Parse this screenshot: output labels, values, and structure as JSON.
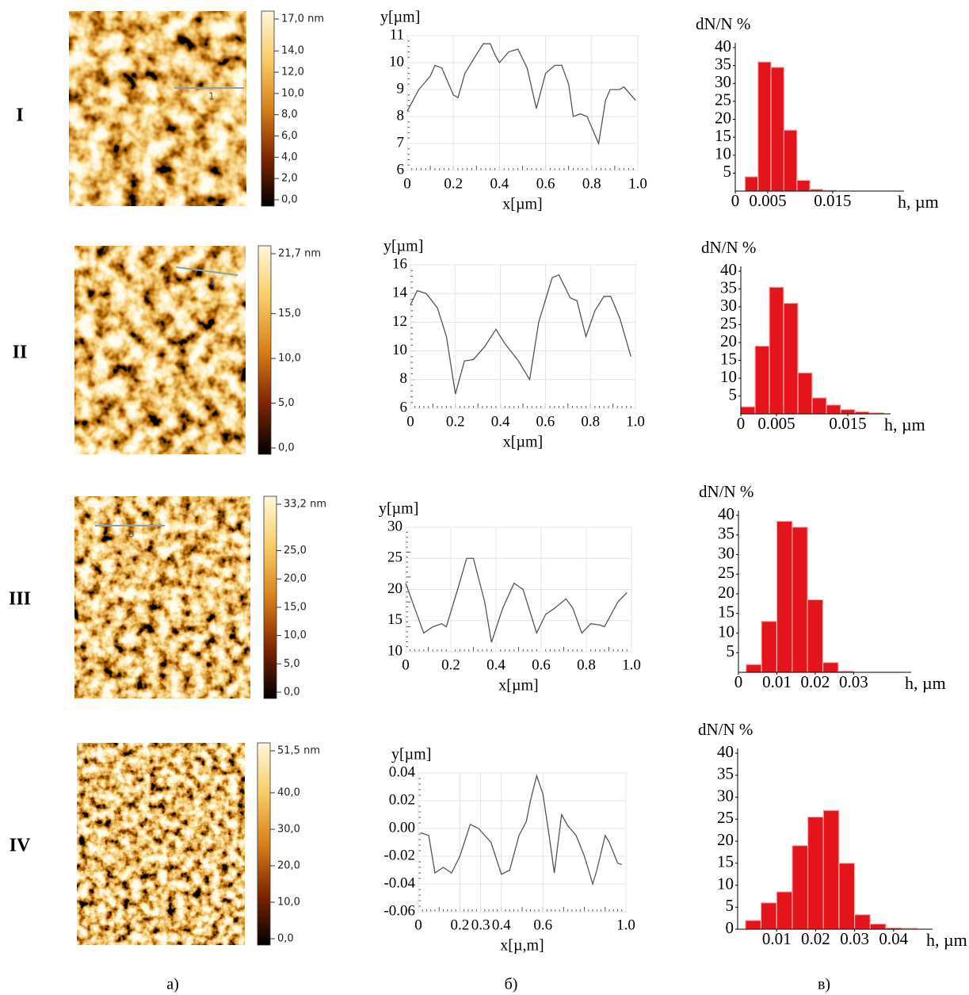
{
  "panel_labels": [
    "а)",
    "б)",
    "в)"
  ],
  "rows": [
    {
      "label": "I",
      "marker": "1",
      "colorbar": {
        "lim": [
          0,
          17
        ],
        "ticks": [
          {
            "value": 0,
            "label": "0,0"
          },
          {
            "value": 2,
            "label": "2,0"
          },
          {
            "value": 4,
            "label": "4,0"
          },
          {
            "value": 6,
            "label": "6,0"
          },
          {
            "value": 8,
            "label": "8,0"
          },
          {
            "value": 10,
            "label": "10,0"
          },
          {
            "value": 12,
            "label": "12,0"
          },
          {
            "value": 14,
            "label": "14,0"
          },
          {
            "value": 17,
            "label": "17,0 nm"
          }
        ]
      }
    },
    {
      "label": "II",
      "marker": "1",
      "colorbar": {
        "lim": [
          0,
          21.7
        ],
        "ticks": [
          {
            "value": 0,
            "label": "0,0"
          },
          {
            "value": 5,
            "label": "5,0"
          },
          {
            "value": 10,
            "label": "10,0"
          },
          {
            "value": 15,
            "label": "15,0"
          },
          {
            "value": 21.7,
            "label": "21,7 nm"
          }
        ]
      }
    },
    {
      "label": "III",
      "marker": "3",
      "colorbar": {
        "lim": [
          0,
          33.2
        ],
        "ticks": [
          {
            "value": 0,
            "label": "0,0"
          },
          {
            "value": 5,
            "label": "5,0"
          },
          {
            "value": 10,
            "label": "10,0"
          },
          {
            "value": 15,
            "label": "15,0"
          },
          {
            "value": 20,
            "label": "20,0"
          },
          {
            "value": 25,
            "label": "25,0"
          },
          {
            "value": 33.2,
            "label": "33,2 nm"
          }
        ]
      }
    },
    {
      "label": "IV",
      "colorbar": {
        "lim": [
          0,
          51.5
        ],
        "ticks": [
          {
            "value": 0,
            "label": "0,0"
          },
          {
            "value": 10,
            "label": "10,0"
          },
          {
            "value": 20,
            "label": "20,0"
          },
          {
            "value": 30,
            "label": "30,0"
          },
          {
            "value": 40,
            "label": "40,0"
          },
          {
            "value": 51.5,
            "label": "51,5 nm"
          }
        ]
      }
    }
  ],
  "chart_data": [
    {
      "type": "line",
      "y_label": "y[µm]",
      "x_label": "x[µm]",
      "color": "#555555",
      "x": [
        0,
        0.05,
        0.1,
        0.12,
        0.15,
        0.2,
        0.22,
        0.25,
        0.3,
        0.33,
        0.36,
        0.38,
        0.4,
        0.44,
        0.48,
        0.52,
        0.56,
        0.6,
        0.64,
        0.67,
        0.7,
        0.72,
        0.75,
        0.78,
        0.8,
        0.83,
        0.86,
        0.88,
        0.92,
        0.94,
        0.96,
        0.99
      ],
      "values": [
        8.2,
        9,
        9.5,
        9.9,
        9.8,
        8.8,
        8.7,
        9.6,
        10.3,
        10.7,
        10.7,
        10.3,
        10,
        10.4,
        10.5,
        9.8,
        8.3,
        9.6,
        9.9,
        9.9,
        9.2,
        8,
        8.1,
        8,
        7.6,
        7,
        8.6,
        9,
        9,
        9.1,
        8.9,
        8.6
      ],
      "xlim": [
        0,
        1
      ],
      "xticks": [
        0,
        0.2,
        0.4,
        0.6,
        0.8,
        {
          "value": 1,
          "label": "1.0"
        }
      ],
      "ylim": [
        6,
        11
      ],
      "yticks": [
        6,
        7,
        8,
        9,
        10,
        11
      ],
      "grid": true
    },
    {
      "type": "histogram",
      "y_label": "dN/N %",
      "x_label": "h, µm",
      "color": "#e3141b",
      "bins": [
        0.0015,
        0.0035,
        0.0055,
        0.0075,
        0.0095,
        0.0115,
        0.0135,
        0.0155
      ],
      "values": [
        4,
        36,
        34.5,
        17,
        3,
        0.5,
        0.2
      ],
      "xlim": [
        0,
        0.026
      ],
      "xticks": [
        0,
        0.005,
        0.015
      ],
      "ylim": [
        0,
        40
      ],
      "yticks": [
        5,
        10,
        15,
        20,
        25,
        30,
        35,
        40
      ]
    },
    {
      "type": "line",
      "y_label": "y[µm]",
      "x_label": "x[µm]",
      "color": "#555555",
      "x": [
        0,
        0.03,
        0.07,
        0.12,
        0.16,
        0.2,
        0.24,
        0.28,
        0.33,
        0.38,
        0.42,
        0.48,
        0.53,
        0.57,
        0.63,
        0.66,
        0.71,
        0.74,
        0.78,
        0.82,
        0.86,
        0.89,
        0.93,
        0.98
      ],
      "values": [
        13.2,
        14.2,
        14,
        13,
        11,
        7,
        9.3,
        9.4,
        10.3,
        11.5,
        10.5,
        9.3,
        8,
        12,
        15.1,
        15.3,
        13.7,
        13.5,
        11,
        12.8,
        13.8,
        13.8,
        12.3,
        9.6
      ],
      "xlim": [
        0,
        1
      ],
      "xticks": [
        0,
        0.2,
        0.4,
        0.6,
        0.8,
        {
          "value": 1,
          "label": "1.0"
        }
      ],
      "ylim": [
        6,
        16
      ],
      "yticks": [
        6,
        8,
        10,
        12,
        14,
        16
      ],
      "grid": true
    },
    {
      "type": "histogram",
      "y_label": "dN/N %",
      "x_label": "h, µm",
      "color": "#e3141b",
      "bins": [
        0,
        0.002,
        0.004,
        0.006,
        0.008,
        0.01,
        0.012,
        0.014,
        0.016,
        0.018,
        0.02
      ],
      "values": [
        2,
        19,
        35.5,
        31,
        11.5,
        4.5,
        2.5,
        1.2,
        0.6,
        0.3
      ],
      "xlim": [
        0,
        0.021
      ],
      "xticks": [
        0,
        0.005,
        0.015
      ],
      "ylim": [
        0,
        40
      ],
      "yticks": [
        5,
        10,
        15,
        20,
        25,
        30,
        35,
        40
      ]
    },
    {
      "type": "line",
      "y_label": "y[µm]",
      "x_label": "x[µm]",
      "color": "#555555",
      "x": [
        0,
        0.04,
        0.08,
        0.12,
        0.16,
        0.18,
        0.23,
        0.27,
        0.3,
        0.35,
        0.38,
        0.43,
        0.48,
        0.52,
        0.58,
        0.62,
        0.66,
        0.71,
        0.74,
        0.78,
        0.82,
        0.86,
        0.88,
        0.94,
        0.98
      ],
      "values": [
        21,
        17,
        13,
        14,
        14.5,
        14,
        20,
        25,
        25,
        18,
        11.5,
        17,
        21,
        20,
        13,
        16,
        17,
        18.5,
        17,
        13,
        14.5,
        14.3,
        14,
        18,
        19.5
      ],
      "xlim": [
        0,
        1
      ],
      "xticks": [
        0,
        0.2,
        0.4,
        0.6,
        0.8,
        {
          "value": 1,
          "label": "1.0"
        }
      ],
      "ylim": [
        10,
        30
      ],
      "yticks": [
        10,
        15,
        20,
        25,
        30
      ],
      "grid": true
    },
    {
      "type": "histogram",
      "y_label": "dN/N %",
      "x_label": "h, µm",
      "color": "#e3141b",
      "bins": [
        0.002,
        0.006,
        0.01,
        0.014,
        0.018,
        0.022,
        0.026,
        0.03
      ],
      "values": [
        2,
        13,
        38.5,
        37,
        18.5,
        2.5,
        0.3
      ],
      "xlim": [
        0,
        0.045
      ],
      "xticks": [
        0,
        0.01,
        0.02,
        0.03
      ],
      "ylim": [
        0,
        40
      ],
      "yticks": [
        5,
        10,
        15,
        20,
        25,
        30,
        35,
        40
      ]
    },
    {
      "type": "line",
      "y_label": "y[µm]",
      "x_label": "x[µ,m]",
      "color": "#555555",
      "x": [
        0.01,
        0.05,
        0.08,
        0.12,
        0.16,
        0.2,
        0.25,
        0.29,
        0.35,
        0.4,
        0.44,
        0.485,
        0.52,
        0.54,
        0.57,
        0.6,
        0.63,
        0.655,
        0.69,
        0.72,
        0.76,
        0.8,
        0.84,
        0.86,
        0.9,
        0.92,
        0.96,
        0.98
      ],
      "values": [
        -0.003,
        -0.005,
        -0.032,
        -0.028,
        -0.032,
        -0.02,
        0.003,
        0,
        -0.01,
        -0.033,
        -0.03,
        -0.005,
        0.005,
        0.02,
        0.038,
        0.025,
        -0.005,
        -0.032,
        0.01,
        0.002,
        -0.005,
        -0.02,
        -0.04,
        -0.03,
        -0.005,
        -0.01,
        -0.025,
        -0.026
      ],
      "xlim": [
        0,
        1
      ],
      "xticks": [
        0,
        0.2,
        0.3,
        0.4,
        0.6,
        {
          "value": 1,
          "label": "1.0"
        }
      ],
      "ylim": [
        -0.06,
        0.04
      ],
      "yticks": [
        -0.06,
        -0.04,
        -0.02,
        {
          "value": 0,
          "label": "0.00"
        },
        0.02,
        0.04
      ],
      "grid": true
    },
    {
      "type": "histogram",
      "y_label": "dN/N %",
      "x_label": "h, µm",
      "color": "#e3141b",
      "bins": [
        0.002,
        0.006,
        0.01,
        0.014,
        0.018,
        0.022,
        0.026,
        0.03,
        0.034,
        0.038,
        0.042,
        0.046
      ],
      "values": [
        2,
        6,
        8.5,
        19,
        25.5,
        27,
        15,
        3.3,
        1.2,
        0.3,
        0.2
      ],
      "xlim": [
        0,
        0.05
      ],
      "xticks": [
        0.01,
        0.02,
        0.03,
        0.04
      ],
      "ylim": [
        0,
        40
      ],
      "yticks": [
        0,
        5,
        10,
        15,
        20,
        25,
        30,
        35,
        40
      ]
    }
  ]
}
